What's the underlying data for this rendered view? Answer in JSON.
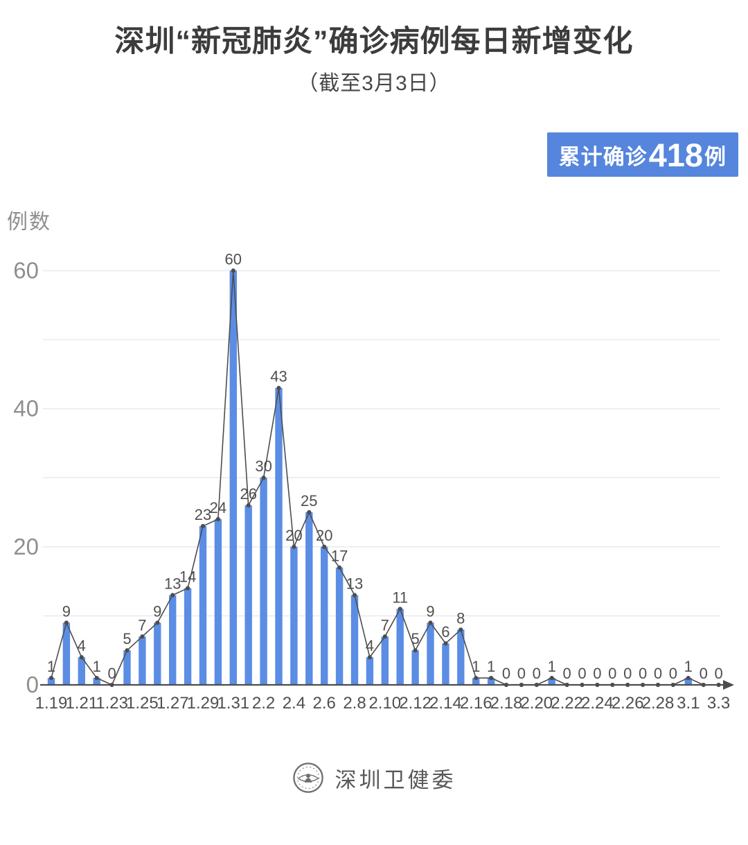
{
  "header": {
    "title": "深圳“新冠肺炎”确诊病例每日新增变化",
    "subtitle": "（截至3月3日）",
    "badge": {
      "prefix": "累计确诊",
      "number": "418",
      "suffix": "例"
    }
  },
  "footer": {
    "source": "深圳卫健委",
    "logo_icon": "shenzhen-health-commission-seal"
  },
  "colors": {
    "bar": "#5b8de4",
    "badge_bg": "#5585dd",
    "line": "#4d4d4d",
    "marker": "#4d4d4d",
    "grid": "#ebebeb",
    "axis": "#4d4d4d",
    "value_label": "#4f4f4f",
    "x_tick": "#4f4f4f",
    "y_tick": "#8f8f8f",
    "title_text": "#3c3c3c"
  },
  "chart_data": {
    "type": "bar",
    "subtype": "bars-with-line-overlay-and-point-markers",
    "title": "深圳“新冠肺炎”确诊病例每日新增变化",
    "subtitle": "（截至3月3日）",
    "xlabel": "",
    "ylabel": "例数",
    "ylim": [
      0,
      60
    ],
    "y_ticks_labeled": [
      0,
      20,
      40,
      60
    ],
    "grid": true,
    "grid_interval": 10,
    "legend_position": "none",
    "x_tick_label_every": 2,
    "data_labels_shown": true,
    "cumulative_total": 418,
    "categories": [
      "1.19",
      "1.20",
      "1.21",
      "1.22",
      "1.23",
      "1.24",
      "1.25",
      "1.26",
      "1.27",
      "1.28",
      "1.29",
      "1.30",
      "1.31",
      "2.1",
      "2.2",
      "2.3",
      "2.4",
      "2.5",
      "2.6",
      "2.7",
      "2.8",
      "2.9",
      "2.10",
      "2.11",
      "2.12",
      "2.13",
      "2.14",
      "2.15",
      "2.16",
      "2.17",
      "2.18",
      "2.19",
      "2.20",
      "2.21",
      "2.22",
      "2.23",
      "2.24",
      "2.25",
      "2.26",
      "2.27",
      "2.28",
      "2.29",
      "3.1",
      "3.2",
      "3.3"
    ],
    "values": [
      1,
      9,
      4,
      1,
      0,
      5,
      7,
      9,
      13,
      14,
      23,
      24,
      60,
      26,
      30,
      43,
      20,
      25,
      20,
      17,
      13,
      4,
      7,
      11,
      5,
      9,
      6,
      8,
      1,
      1,
      0,
      0,
      0,
      1,
      0,
      0,
      0,
      0,
      0,
      0,
      0,
      0,
      1,
      0,
      0
    ]
  }
}
